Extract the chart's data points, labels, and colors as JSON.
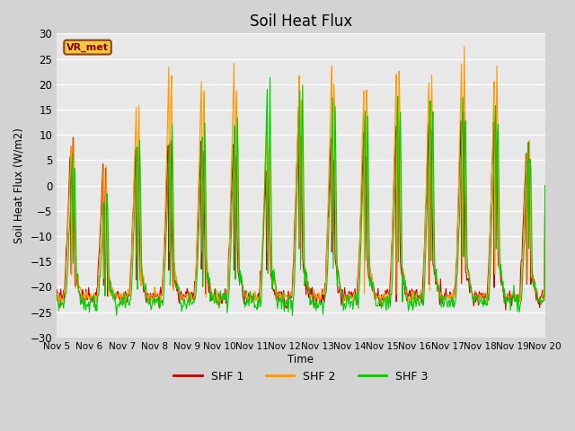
{
  "title": "Soil Heat Flux",
  "ylabel": "Soil Heat Flux (W/m2)",
  "xlabel": "Time",
  "ylim": [
    -30,
    30
  ],
  "background_color": "#d3d3d3",
  "plot_bg_color": "#e8e8e8",
  "grid_color": "white",
  "colors": {
    "SHF 1": "#cc0000",
    "SHF 2": "#ff9900",
    "SHF 3": "#00cc00"
  },
  "x_tick_labels": [
    "Nov 5",
    "Nov 6",
    "Nov 7",
    "Nov 8",
    "Nov 9",
    "Nov 10",
    "Nov 11",
    "Nov 12",
    "Nov 13",
    "Nov 14",
    "Nov 15",
    "Nov 16",
    "Nov 17",
    "Nov 18",
    "Nov 19",
    "Nov 20"
  ],
  "watermark_text": "VR_met",
  "watermark_color": "#8B0000",
  "watermark_bg": "#f5c842",
  "watermark_edge": "#8B4513",
  "day_peaks_shf2": [
    10,
    5,
    18,
    25,
    23,
    25,
    13,
    22,
    25,
    24,
    27,
    25,
    29,
    25,
    9
  ],
  "day_peaks_shf1": [
    9,
    4,
    9,
    9,
    9,
    9,
    3,
    16,
    10,
    10,
    16,
    15,
    15,
    15,
    9
  ],
  "day_peaks_shf3": [
    6,
    0,
    12,
    13,
    13,
    15,
    22,
    22,
    18,
    17,
    19,
    19,
    18,
    18,
    10
  ],
  "night_base_shf1": -22,
  "night_base_shf2": -22,
  "night_base_shf3": -23,
  "n_per_day": 48
}
